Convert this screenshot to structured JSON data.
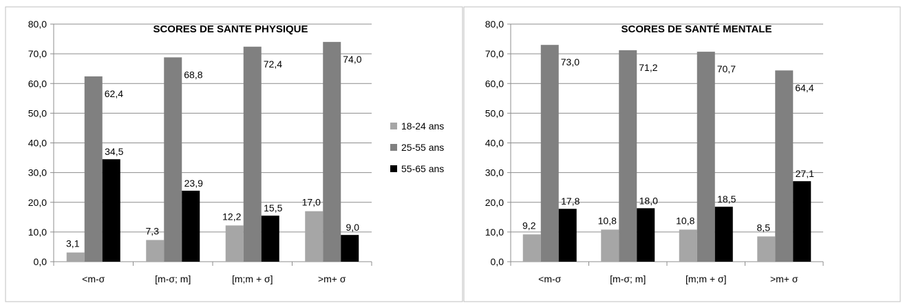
{
  "chart_data": [
    {
      "type": "bar",
      "title": "SCORES DE SANTE PHYSIQUE",
      "categories": [
        "<m-σ",
        "[m-σ; m]",
        "[m;m + σ]",
        ">m+ σ"
      ],
      "series": [
        {
          "name": "18-24 ans",
          "values": [
            3.1,
            7.3,
            12.2,
            17.0
          ],
          "labels": [
            "3,1",
            "7,3",
            "12,2",
            "17,0"
          ],
          "color": "#a6a6a6"
        },
        {
          "name": "25-55 ans",
          "values": [
            62.4,
            68.8,
            72.4,
            74.0
          ],
          "labels": [
            "62,4",
            "68,8",
            "72,4",
            "74,0"
          ],
          "color": "#808080"
        },
        {
          "name": "55-65 ans",
          "values": [
            34.5,
            23.9,
            15.5,
            9.0
          ],
          "labels": [
            "34,5",
            "23,9",
            "15,5",
            "9,0"
          ],
          "color": "#000000"
        }
      ],
      "ylim": [
        0,
        80
      ],
      "yticks": [
        0,
        10,
        20,
        30,
        40,
        50,
        60,
        70,
        80
      ],
      "ytick_labels": [
        "0,0",
        "10,0",
        "20,0",
        "30,0",
        "40,0",
        "50,0",
        "60,0",
        "70,0",
        "80,0"
      ],
      "grid": true,
      "legend": "right",
      "xlabel": "",
      "ylabel": ""
    },
    {
      "type": "bar",
      "title": "SCORES DE SANTÉ MENTALE",
      "categories": [
        "<m-σ",
        "[m-σ; m]",
        "[m;m + σ]",
        ">m+ σ"
      ],
      "series": [
        {
          "name": "18-24 ans",
          "values": [
            9.2,
            10.8,
            10.8,
            8.5
          ],
          "labels": [
            "9,2",
            "10,8",
            "10,8",
            "8,5"
          ],
          "color": "#a6a6a6"
        },
        {
          "name": "25-55 ans",
          "values": [
            73.0,
            71.2,
            70.7,
            64.4
          ],
          "labels": [
            "73,0",
            "71,2",
            "70,7",
            "64,4"
          ],
          "color": "#808080"
        },
        {
          "name": "55-65 ans",
          "values": [
            17.8,
            18.0,
            18.5,
            27.1
          ],
          "labels": [
            "17,8",
            "18,0",
            "18,5",
            "27,1"
          ],
          "color": "#000000"
        }
      ],
      "ylim": [
        0,
        80
      ],
      "yticks": [
        0,
        10,
        20,
        30,
        40,
        50,
        60,
        70,
        80
      ],
      "ytick_labels": [
        "0,0",
        "10,0",
        "20,0",
        "30,0",
        "40,0",
        "50,0",
        "60,0",
        "70,0",
        "80,0"
      ],
      "grid": true,
      "legend": "none",
      "xlabel": "",
      "ylabel": ""
    }
  ]
}
